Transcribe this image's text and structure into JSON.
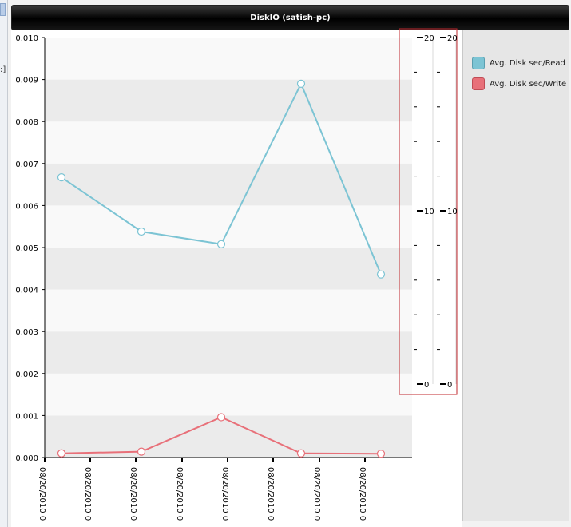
{
  "window": {
    "title": "DiskIO (satish-pc)"
  },
  "left_strip": {
    "glyph": ":]"
  },
  "colors": {
    "read": "#7cc4d4",
    "write": "#e87079",
    "highlight_box": "#c0282e",
    "band": "#ebebeb"
  },
  "chart_data": {
    "type": "line",
    "title": "DiskIO (satish-pc)",
    "ylim": [
      0,
      0.01
    ],
    "y_ticks": [
      "0.000",
      "0.001",
      "0.002",
      "0.003",
      "0.004",
      "0.005",
      "0.006",
      "0.007",
      "0.008",
      "0.009",
      "0.010"
    ],
    "x_tick_label": "08/20/2010 0",
    "x_tick_count": 8,
    "series": [
      {
        "name": "Avg. Disk sec/Read (",
        "values": [
          0.00667,
          0.00538,
          0.00508,
          0.0089,
          0.00436
        ]
      },
      {
        "name": "Avg. Disk sec/Write (",
        "values": [
          0.0001,
          0.00014,
          0.00096,
          0.0001,
          9e-05
        ]
      }
    ],
    "secondary_axes": [
      {
        "range": [
          0,
          20
        ],
        "labels": [
          "20",
          "10",
          "0"
        ]
      },
      {
        "range": [
          0,
          20
        ],
        "labels": [
          "20",
          "10",
          "0"
        ]
      }
    ],
    "grid": "alternating-bands",
    "legend_position": "right"
  }
}
